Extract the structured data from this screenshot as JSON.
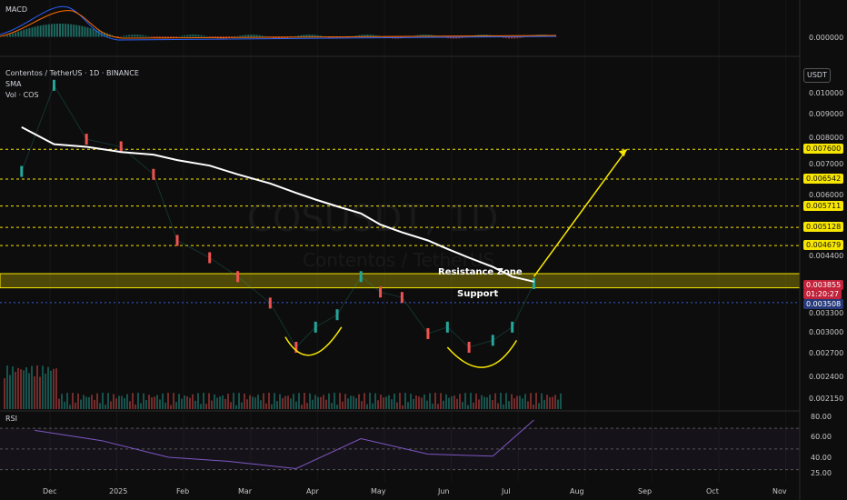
{
  "header": {
    "symbol_line": "Contentos / TetherUS · 1D · BINANCE",
    "sma_label": "SMA",
    "vol_label": "Vol · COS",
    "macd_label": "MACD",
    "rsi_label": "RSI",
    "unit": "USDT"
  },
  "watermark": {
    "ticker": "COSUSDT, 1D",
    "name": "Contentos / TetherUS"
  },
  "annotations": {
    "resistance": "Resistance Zone",
    "support": "Support"
  },
  "price_axis": {
    "plain_ticks": [
      "0.010000",
      "0.009000",
      "0.008000",
      "0.007000",
      "0.006000",
      "0.004400",
      "0.003300",
      "0.003000",
      "0.002700",
      "0.002400",
      "0.002150"
    ],
    "tagged_levels": [
      {
        "value": "0.007600",
        "style": "yellow"
      },
      {
        "value": "0.006542",
        "style": "yellow"
      },
      {
        "value": "0.005711",
        "style": "yellow"
      },
      {
        "value": "0.005128",
        "style": "yellow"
      },
      {
        "value": "0.004679",
        "style": "yellow"
      }
    ],
    "current_price": "0.003855",
    "countdown": "01:20:27",
    "support_price": "0.003508",
    "macd_tick": "0.000000",
    "rsi_ticks": [
      "80.00",
      "60.00",
      "40.00",
      "25.00"
    ]
  },
  "time_axis": [
    "Dec",
    "2025",
    "Feb",
    "Mar",
    "Apr",
    "May",
    "Jun",
    "Jul",
    "Aug",
    "Sep",
    "Oct",
    "Nov"
  ],
  "colors": {
    "background": "#0d0d0d",
    "up": "#26a69a",
    "down": "#ef5350",
    "sma": "#ffffff",
    "target_lines": "#f7e600",
    "rsi": "#7e57c2",
    "macd": "#2962ff",
    "signal": "#ff6d00"
  },
  "chart_data": {
    "type": "line",
    "scale": "log",
    "x": [
      "2024-11-25",
      "2024-12-10",
      "2024-12-25",
      "2025-01-10",
      "2025-01-25",
      "2025-02-05",
      "2025-02-20",
      "2025-03-05",
      "2025-03-20",
      "2025-04-01",
      "2025-04-10",
      "2025-04-20",
      "2025-05-01",
      "2025-05-10",
      "2025-05-20",
      "2025-06-01",
      "2025-06-10",
      "2025-06-20",
      "2025-07-01",
      "2025-07-10",
      "2025-07-20"
    ],
    "series": [
      {
        "values": [
          0.0068,
          0.0105,
          0.008,
          0.0077,
          0.0067,
          0.0048,
          0.0044,
          0.004,
          0.0035,
          0.0028,
          0.0031,
          0.0033,
          0.004,
          0.0037,
          0.0036,
          0.003,
          0.0031,
          0.0028,
          0.0029,
          0.0031,
          0.00386
        ]
      },
      {
        "values": [
          0.0085,
          0.0078,
          0.0077,
          0.0075,
          0.0074,
          0.0072,
          0.007,
          0.0067,
          0.0064,
          0.0061,
          0.0059,
          0.0057,
          0.0055,
          0.0052,
          0.005,
          0.0048,
          0.0046,
          0.0044,
          0.0042,
          0.004,
          0.0039
        ]
      }
    ],
    "resistance_zone": [
      0.00378,
      0.00406
    ],
    "support_level": 0.003508,
    "target_levels": [
      0.004679,
      0.005128,
      0.005711,
      0.006542,
      0.0076
    ],
    "ylim": [
      0.00205,
      0.0115
    ],
    "rsi": {
      "x": [
        "2024-12-01",
        "2025-01-01",
        "2025-02-01",
        "2025-03-01",
        "2025-04-01",
        "2025-05-01",
        "2025-06-01",
        "2025-07-01",
        "2025-07-20"
      ],
      "values": [
        68,
        58,
        42,
        38,
        31,
        60,
        45,
        43,
        78
      ],
      "ylim": [
        20,
        85
      ]
    }
  }
}
